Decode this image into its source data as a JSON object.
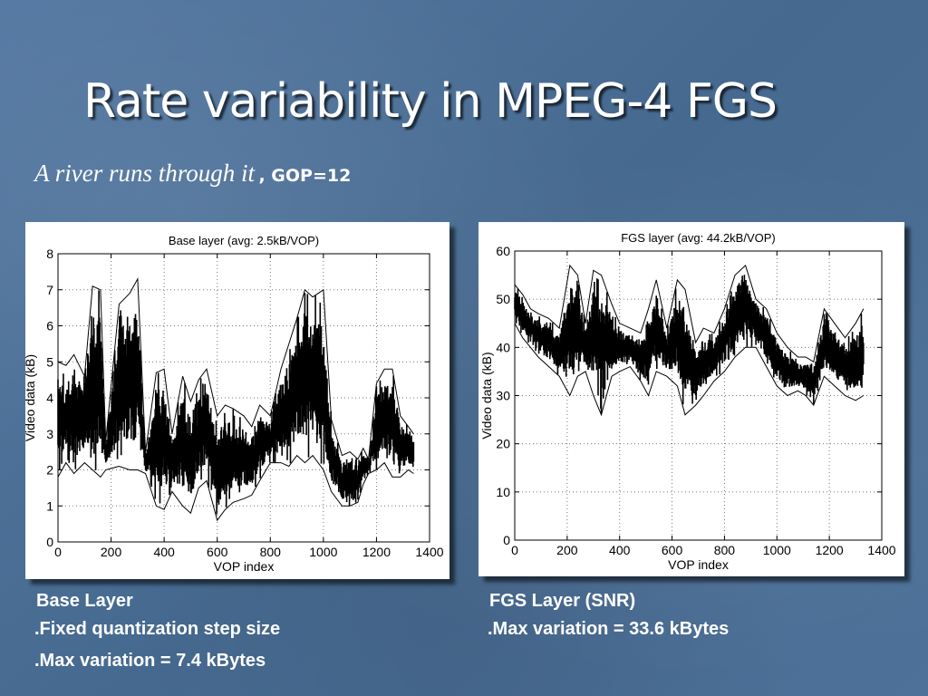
{
  "slide": {
    "title": "Rate variability in MPEG-4 FGS",
    "subtitle_italic": "A river runs through it",
    "subtitle_bold": ", GOP=12"
  },
  "captions": {
    "base": [
      "Base Layer",
      ".Fixed quantization step size",
      ".Max variation = 7.4 kBytes"
    ],
    "fgs": [
      "FGS Layer  (SNR)",
      ".Max variation = 33.6 kBytes"
    ]
  },
  "colors": {
    "background": "#4a6d96",
    "text": "#ffffff",
    "trace": "#000000",
    "grid": "#777777"
  },
  "chart_data": [
    {
      "type": "line",
      "title": "Base layer (avg: 2.5kB/VOP)",
      "xlabel": "VOP index",
      "ylabel": "Video data (kB)",
      "xlim": [
        0,
        1400
      ],
      "ylim": [
        0,
        8
      ],
      "xticks": [
        0,
        200,
        400,
        600,
        800,
        1000,
        1200,
        1400
      ],
      "yticks": [
        0,
        1,
        2,
        3,
        4,
        5,
        6,
        7,
        8
      ],
      "grid": true,
      "envelope": {
        "x": [
          0,
          30,
          60,
          100,
          130,
          160,
          180,
          230,
          270,
          300,
          330,
          370,
          400,
          430,
          470,
          500,
          530,
          560,
          600,
          630,
          660,
          700,
          730,
          760,
          800,
          840,
          870,
          900,
          930,
          960,
          1000,
          1030,
          1070,
          1100,
          1130,
          1150,
          1170,
          1200,
          1230,
          1260,
          1290,
          1320,
          1340
        ],
        "max": [
          5.0,
          4.9,
          5.2,
          4.6,
          7.1,
          7.0,
          2.8,
          6.6,
          6.9,
          7.3,
          2.5,
          4.7,
          4.8,
          3.0,
          4.6,
          3.9,
          4.5,
          4.8,
          3.5,
          3.8,
          3.7,
          3.5,
          3.2,
          3.8,
          3.5,
          4.8,
          5.5,
          6.2,
          7.0,
          6.8,
          7.0,
          3.4,
          2.4,
          2.5,
          2.3,
          2.6,
          2.3,
          4.4,
          4.8,
          4.8,
          3.5,
          3.2,
          3.0
        ],
        "min": [
          1.8,
          2.2,
          1.9,
          2.2,
          2.0,
          1.8,
          2.0,
          2.1,
          2.0,
          2.0,
          1.9,
          1.0,
          0.9,
          1.4,
          1.0,
          0.8,
          1.5,
          1.7,
          0.6,
          0.9,
          1.1,
          1.2,
          1.3,
          1.7,
          2.2,
          2.2,
          2.1,
          2.4,
          2.2,
          2.4,
          2.0,
          1.4,
          1.0,
          1.0,
          1.1,
          1.6,
          1.9,
          2.0,
          2.2,
          1.8,
          1.8,
          2.0,
          1.9
        ]
      }
    },
    {
      "type": "line",
      "title": "FGS layer (avg: 44.2kB/VOP)",
      "xlabel": "VOP index",
      "ylabel": "Video data (kB)",
      "xlim": [
        0,
        1400
      ],
      "ylim": [
        0,
        60
      ],
      "xticks": [
        0,
        200,
        400,
        600,
        800,
        1000,
        1200,
        1400
      ],
      "yticks": [
        0,
        10,
        20,
        30,
        40,
        50,
        60
      ],
      "grid": true,
      "envelope": {
        "x": [
          0,
          30,
          60,
          90,
          130,
          170,
          210,
          240,
          270,
          300,
          330,
          370,
          400,
          440,
          480,
          510,
          540,
          580,
          620,
          650,
          690,
          720,
          760,
          800,
          840,
          880,
          920,
          960,
          1000,
          1040,
          1080,
          1110,
          1140,
          1180,
          1220,
          1260,
          1300,
          1330
        ],
        "max": [
          53,
          51,
          48,
          47,
          46,
          44,
          57,
          55,
          45,
          56,
          55,
          49,
          45,
          44,
          43,
          48,
          54,
          44,
          54,
          52,
          41,
          44,
          43,
          48,
          55,
          57,
          50,
          48,
          43,
          40,
          38,
          38,
          37,
          48,
          45,
          42,
          45,
          48
        ],
        "min": [
          45,
          42,
          40,
          38,
          36,
          34,
          30,
          34,
          35,
          30,
          26,
          34,
          35,
          36,
          33,
          30,
          35,
          34,
          32,
          26,
          28,
          30,
          33,
          35,
          38,
          40,
          40,
          36,
          32,
          30,
          31,
          30,
          28,
          34,
          32,
          30,
          29,
          30
        ]
      }
    }
  ]
}
